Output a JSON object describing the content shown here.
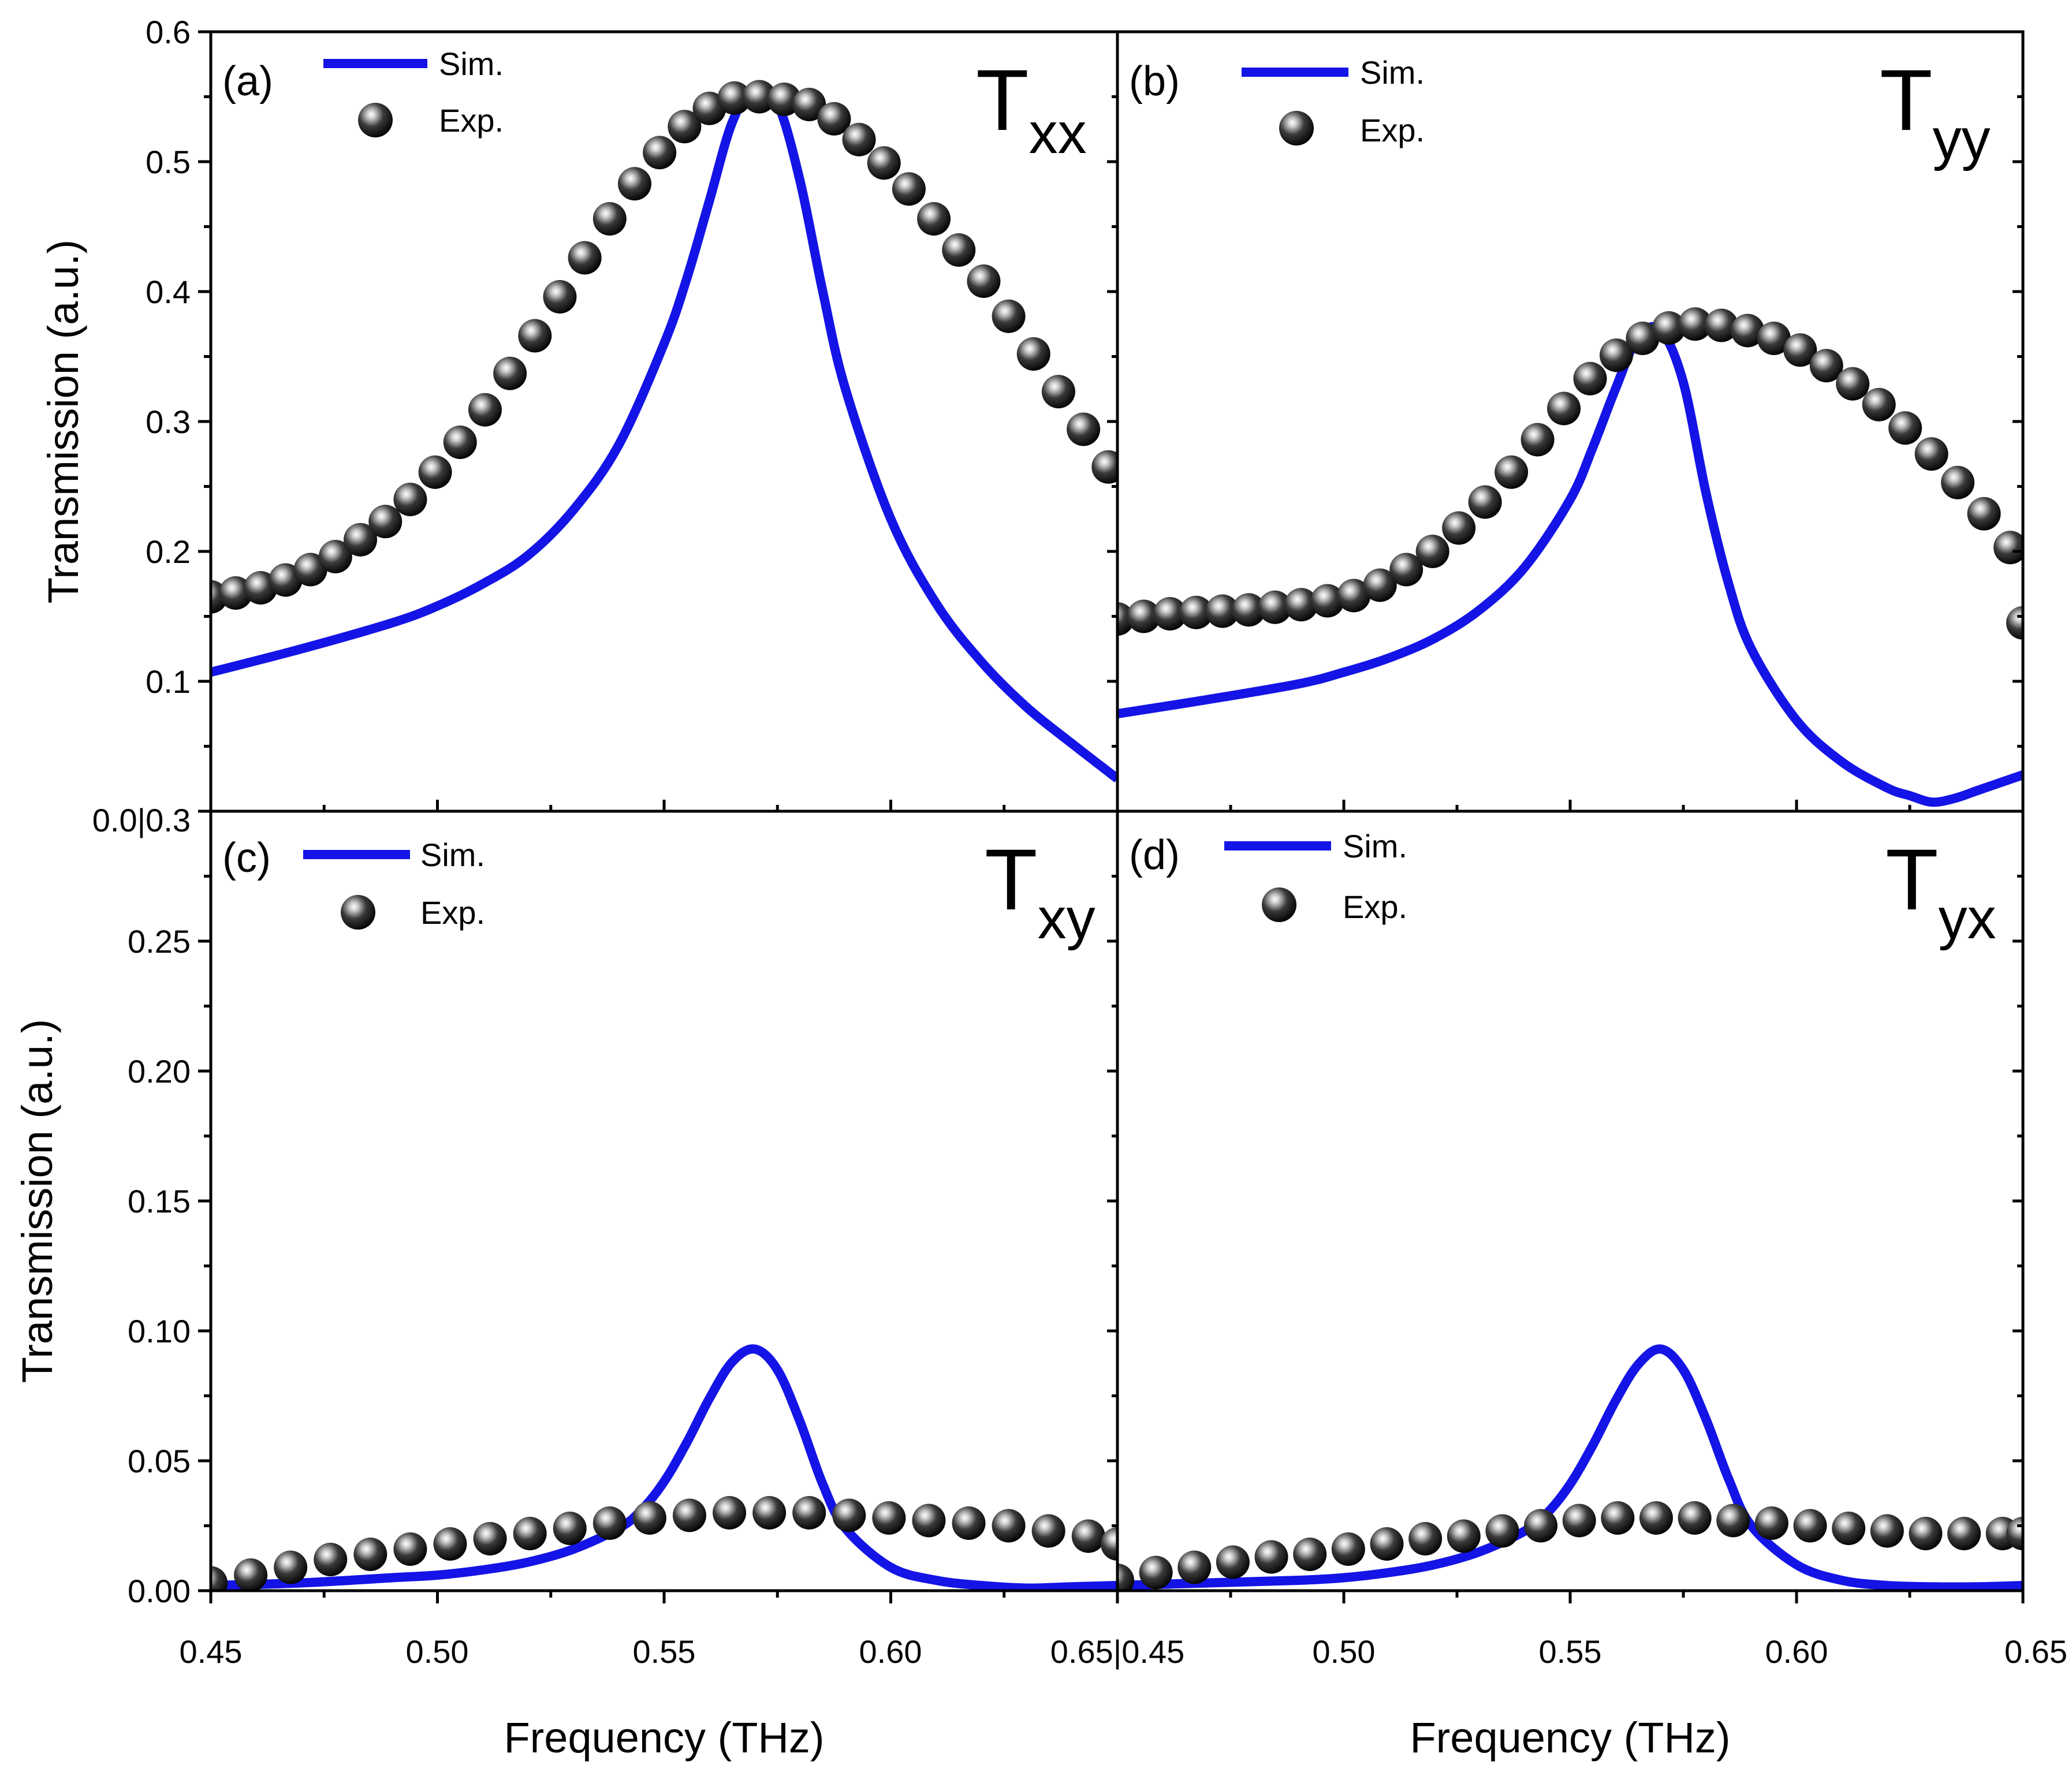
{
  "figure": {
    "x_axis_title": "Frequency (THz)",
    "y_axis_title_top": "Transmission (a.u.)",
    "y_axis_title_bottom": "Transmission (a.u.)",
    "x_tick_labels": [
      "0.45",
      "0.50",
      "0.55",
      "0.60",
      "0.65|0.45",
      "0.50",
      "0.55",
      "0.60",
      "0.65"
    ],
    "y_tick_labels_top": [
      "0.6",
      "0.5",
      "0.4",
      "0.3",
      "0.2",
      "0.1",
      "0.0|0.3"
    ],
    "y_tick_labels_bottom": [
      "0.25",
      "0.20",
      "0.15",
      "0.10",
      "0.05",
      "0.00"
    ],
    "legend": {
      "sim_label": "Sim.",
      "exp_label": "Exp."
    },
    "colors": {
      "sim": "#1414e6",
      "exp": "#111111",
      "axis": "#000000"
    }
  },
  "chart_data": [
    {
      "type": "line+scatter",
      "panel_label": "(a)",
      "title_main": "T",
      "title_sub": "xx",
      "xlabel": "Frequency (THz)",
      "ylabel": "Transmission (a.u.)",
      "xlim": [
        0.45,
        0.65
      ],
      "ylim": [
        0.0,
        0.6
      ],
      "series": [
        {
          "name": "Sim.",
          "style": "line",
          "x": [
            0.45,
            0.47,
            0.49,
            0.5,
            0.51,
            0.52,
            0.53,
            0.54,
            0.55,
            0.555,
            0.56,
            0.565,
            0.57,
            0.575,
            0.58,
            0.585,
            0.59,
            0.6,
            0.61,
            0.62,
            0.63,
            0.64,
            0.65
          ],
          "y": [
            0.107,
            0.125,
            0.145,
            0.158,
            0.175,
            0.197,
            0.232,
            0.282,
            0.36,
            0.41,
            0.47,
            0.53,
            0.558,
            0.545,
            0.485,
            0.4,
            0.325,
            0.225,
            0.16,
            0.115,
            0.08,
            0.052,
            0.025
          ]
        },
        {
          "name": "Exp.",
          "style": "markers",
          "x": [
            0.45,
            0.4555,
            0.461,
            0.4665,
            0.472,
            0.4775,
            0.483,
            0.4885,
            0.494,
            0.4995,
            0.505,
            0.5105,
            0.516,
            0.5215,
            0.527,
            0.5325,
            0.538,
            0.5435,
            0.549,
            0.5545,
            0.56,
            0.5655,
            0.571,
            0.5765,
            0.582,
            0.5875,
            0.593,
            0.5985,
            0.604,
            0.6095,
            0.615,
            0.6205,
            0.626,
            0.6315,
            0.637,
            0.6425,
            0.648
          ],
          "y": [
            0.165,
            0.168,
            0.172,
            0.178,
            0.186,
            0.196,
            0.209,
            0.223,
            0.24,
            0.261,
            0.284,
            0.309,
            0.337,
            0.366,
            0.396,
            0.426,
            0.456,
            0.483,
            0.507,
            0.527,
            0.541,
            0.549,
            0.55,
            0.548,
            0.544,
            0.533,
            0.517,
            0.499,
            0.479,
            0.456,
            0.432,
            0.408,
            0.381,
            0.352,
            0.323,
            0.294,
            0.265
          ]
        }
      ]
    },
    {
      "type": "line+scatter",
      "panel_label": "(b)",
      "title_main": "T",
      "title_sub": "yy",
      "xlabel": "Frequency (THz)",
      "ylabel": "Transmission (a.u.)",
      "xlim": [
        0.45,
        0.65
      ],
      "ylim": [
        0.0,
        0.6
      ],
      "series": [
        {
          "name": "Sim.",
          "style": "line",
          "x": [
            0.45,
            0.47,
            0.49,
            0.5,
            0.51,
            0.52,
            0.53,
            0.54,
            0.55,
            0.555,
            0.56,
            0.565,
            0.57,
            0.575,
            0.58,
            0.585,
            0.59,
            0.6,
            0.61,
            0.62,
            0.625,
            0.63,
            0.635,
            0.64,
            0.645,
            0.65
          ],
          "y": [
            0.075,
            0.086,
            0.098,
            0.107,
            0.118,
            0.133,
            0.155,
            0.188,
            0.24,
            0.28,
            0.325,
            0.365,
            0.37,
            0.33,
            0.245,
            0.175,
            0.125,
            0.07,
            0.038,
            0.018,
            0.012,
            0.007,
            0.01,
            0.016,
            0.022,
            0.028
          ]
        },
        {
          "name": "Exp.",
          "style": "markers",
          "x": [
            0.45,
            0.4558,
            0.4616,
            0.4674,
            0.4732,
            0.479,
            0.4848,
            0.4906,
            0.4964,
            0.5022,
            0.508,
            0.5138,
            0.5196,
            0.5254,
            0.5312,
            0.537,
            0.5428,
            0.5486,
            0.5544,
            0.5602,
            0.566,
            0.5718,
            0.5776,
            0.5834,
            0.5892,
            0.595,
            0.6008,
            0.6066,
            0.6124,
            0.6182,
            0.624,
            0.6298,
            0.6356,
            0.6414,
            0.6472,
            0.65
          ],
          "y": [
            0.148,
            0.15,
            0.152,
            0.153,
            0.154,
            0.155,
            0.157,
            0.159,
            0.162,
            0.166,
            0.174,
            0.186,
            0.2,
            0.218,
            0.238,
            0.261,
            0.286,
            0.31,
            0.333,
            0.351,
            0.364,
            0.372,
            0.375,
            0.374,
            0.37,
            0.364,
            0.355,
            0.343,
            0.329,
            0.313,
            0.295,
            0.275,
            0.253,
            0.229,
            0.203,
            0.145
          ]
        }
      ]
    },
    {
      "type": "line+scatter",
      "panel_label": "(c)",
      "title_main": "T",
      "title_sub": "xy",
      "xlabel": "Frequency (THz)",
      "ylabel": "Transmission (a.u.)",
      "xlim": [
        0.45,
        0.65
      ],
      "ylim": [
        0.0,
        0.3
      ],
      "series": [
        {
          "name": "Sim.",
          "style": "line",
          "x": [
            0.45,
            0.47,
            0.49,
            0.5,
            0.51,
            0.52,
            0.53,
            0.54,
            0.545,
            0.55,
            0.555,
            0.56,
            0.565,
            0.57,
            0.575,
            0.58,
            0.585,
            0.59,
            0.6,
            0.61,
            0.62,
            0.63,
            0.64,
            0.65
          ],
          "y": [
            0.002,
            0.003,
            0.005,
            0.006,
            0.008,
            0.011,
            0.016,
            0.024,
            0.031,
            0.042,
            0.057,
            0.074,
            0.088,
            0.093,
            0.085,
            0.065,
            0.041,
            0.024,
            0.009,
            0.004,
            0.002,
            0.001,
            0.0015,
            0.002
          ]
        },
        {
          "name": "Exp.",
          "style": "markers",
          "x": [
            0.45,
            0.4588,
            0.4676,
            0.4764,
            0.4852,
            0.494,
            0.5028,
            0.5116,
            0.5204,
            0.5292,
            0.538,
            0.5468,
            0.5556,
            0.5644,
            0.5732,
            0.582,
            0.5908,
            0.5996,
            0.6084,
            0.6172,
            0.626,
            0.6348,
            0.6436,
            0.65
          ],
          "y": [
            0.003,
            0.006,
            0.009,
            0.012,
            0.014,
            0.016,
            0.018,
            0.02,
            0.022,
            0.024,
            0.026,
            0.028,
            0.029,
            0.03,
            0.03,
            0.03,
            0.029,
            0.028,
            0.027,
            0.026,
            0.025,
            0.023,
            0.021,
            0.018
          ]
        }
      ]
    },
    {
      "type": "line+scatter",
      "panel_label": "(d)",
      "title_main": "T",
      "title_sub": "yx",
      "xlabel": "Frequency (THz)",
      "ylabel": "Transmission (a.u.)",
      "xlim": [
        0.45,
        0.65
      ],
      "ylim": [
        0.0,
        0.3
      ],
      "series": [
        {
          "name": "Sim.",
          "style": "line",
          "x": [
            0.45,
            0.47,
            0.49,
            0.5,
            0.51,
            0.52,
            0.53,
            0.54,
            0.545,
            0.55,
            0.555,
            0.56,
            0.565,
            0.57,
            0.575,
            0.58,
            0.585,
            0.59,
            0.6,
            0.61,
            0.62,
            0.63,
            0.64,
            0.65
          ],
          "y": [
            0.002,
            0.003,
            0.004,
            0.005,
            0.007,
            0.01,
            0.015,
            0.023,
            0.03,
            0.041,
            0.056,
            0.073,
            0.087,
            0.093,
            0.085,
            0.066,
            0.043,
            0.025,
            0.01,
            0.004,
            0.002,
            0.0015,
            0.0015,
            0.002
          ]
        },
        {
          "name": "Exp.",
          "style": "markers",
          "x": [
            0.45,
            0.4585,
            0.467,
            0.4755,
            0.484,
            0.4925,
            0.501,
            0.5095,
            0.518,
            0.5265,
            0.535,
            0.5435,
            0.552,
            0.5605,
            0.569,
            0.5775,
            0.586,
            0.5945,
            0.603,
            0.6115,
            0.62,
            0.6285,
            0.637,
            0.6455,
            0.65
          ],
          "y": [
            0.004,
            0.007,
            0.009,
            0.011,
            0.013,
            0.014,
            0.016,
            0.018,
            0.02,
            0.021,
            0.023,
            0.025,
            0.027,
            0.028,
            0.028,
            0.028,
            0.027,
            0.026,
            0.025,
            0.024,
            0.023,
            0.022,
            0.022,
            0.022,
            0.022
          ]
        }
      ]
    }
  ]
}
